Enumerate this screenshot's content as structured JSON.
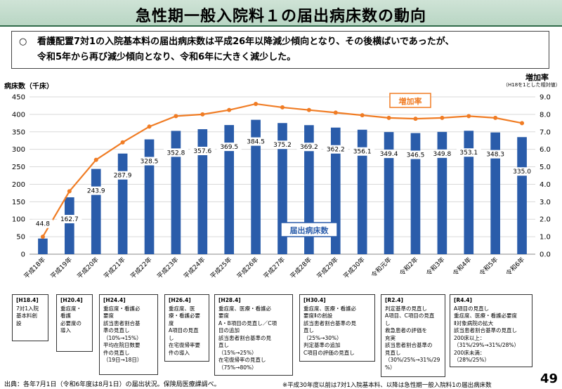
{
  "title": "急性期一般入院料１の届出病床数の動向",
  "summary": {
    "bullet": "○",
    "line1": "看護配置7対1の入院基本料の届出病床数は平成26年以降減少傾向となり、その後横ばいであったが、",
    "line2": "令和5年から再び減少傾向となり、令和6年に大きく減少した。"
  },
  "chart_data": {
    "type": "bar",
    "categories": [
      "平成18年",
      "平成19年",
      "平成20年",
      "平成21年",
      "平成22年",
      "平成23年",
      "平成24年",
      "平成25年",
      "平成26年",
      "平成27年",
      "平成28年",
      "平成29年",
      "平成30年",
      "令和元年",
      "令和2年",
      "令和3年",
      "令和4年",
      "令和5年",
      "令和6年"
    ],
    "series": [
      {
        "name": "届出病床数",
        "type": "bar",
        "axis": "left",
        "color": "#2a5caa",
        "values": [
          44.8,
          162.7,
          243.9,
          287.9,
          328.5,
          352.8,
          357.6,
          369.5,
          384.5,
          375.2,
          369.2,
          362.2,
          356.1,
          349.4,
          346.5,
          349.8,
          353.1,
          348.3,
          335.0
        ]
      },
      {
        "name": "増加率",
        "type": "line",
        "axis": "right",
        "color": "#f07c24",
        "values": [
          1.0,
          3.6,
          5.4,
          6.4,
          7.3,
          7.9,
          8.0,
          8.25,
          8.6,
          8.4,
          8.25,
          8.1,
          7.95,
          7.8,
          7.75,
          7.8,
          7.9,
          7.8,
          7.5
        ]
      }
    ],
    "ylabel": "病床数（千床）",
    "ylim": [
      0,
      450
    ],
    "yticks": [
      0,
      50,
      100,
      150,
      200,
      250,
      300,
      350,
      400,
      450
    ],
    "y2label": "増加率",
    "y2sublabel": "（H18を1とした相対値）",
    "y2lim": [
      0,
      9.0
    ],
    "y2ticks": [
      "0.0",
      "1.0",
      "2.0",
      "3.0",
      "4.0",
      "5.0",
      "6.0",
      "7.0",
      "8.0",
      "9.0"
    ],
    "grid": true
  },
  "notes": [
    {
      "title": "[H18.4]",
      "lines": [
        "7対1入院",
        "基本料創",
        "設"
      ]
    },
    {
      "title": "[H20.4]",
      "lines": [
        "重症度・",
        "看護",
        "必要度の",
        "導入"
      ]
    },
    {
      "title": "[H24.4]",
      "lines": [
        "重症度・看護必",
        "要度",
        "該当患者割合基",
        "準の見直し",
        "（10%→15%）",
        "平均在院日数要",
        "件の見直し",
        "（19日→18日）"
      ]
    },
    {
      "title": "[H26.4]",
      "lines": [
        "重症度、医",
        "療・看護必要",
        "度",
        "A項目の見直",
        "し",
        "在宅復帰率要",
        "件の導入"
      ]
    },
    {
      "title": "[H28.4]",
      "lines": [
        "重症度、医療・看護必",
        "要度",
        "A・B項目の見直し／C項",
        "目の追加",
        "該当患者割合基準の見",
        "直し",
        "（15%→25%）",
        "在宅復帰率の見直し",
        "（75%→80%）"
      ]
    },
    {
      "title": "[H30.4]",
      "lines": [
        "重症度、医療・看護必",
        "要度Ⅱの創設",
        "該当患者割合基準の見",
        "直し",
        "（25%→30%）",
        "判定基準の追加",
        "C項目の評価の見直し"
      ]
    },
    {
      "title": "[R2.4]",
      "lines": [
        "判定基準の見直し",
        "A項目、C項目の見直",
        "し",
        "救急患者の評価を",
        "充実",
        "該当患者割合基準の",
        "見直し",
        "（30%/25%→31%/29",
        "%）"
      ]
    },
    {
      "title": "[R4.4]",
      "lines": [
        "A項目の見直し",
        "重症度、医療・看護必要度",
        "Ⅱ対象病院の拡大",
        "該当患者割合基準の見直し",
        "200床以上：",
        "（31%/29%→31%/28%）",
        "200床未満：",
        "（28%/25%）"
      ]
    }
  ],
  "footer": {
    "source": "出典：各年7月1日（令和6年度は8月1日）の届出状況。保険局医療課調べ。",
    "note": "※平成30年度以前は7対1入院基本料、以降は急性期一般入院料1の届出病床数"
  },
  "page_number": "49"
}
